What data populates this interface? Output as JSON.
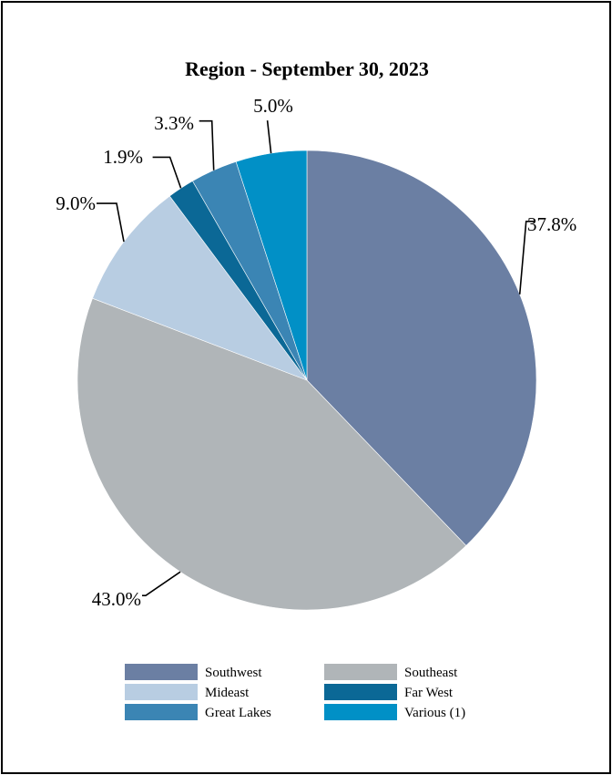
{
  "chart_data": {
    "type": "pie",
    "title": "Region - September 30, 2023",
    "slices": [
      {
        "name": "Southwest",
        "value": 37.8,
        "label": "37.8%",
        "color": "#6b7fa3"
      },
      {
        "name": "Southeast",
        "value": 43.0,
        "label": "43.0%",
        "color": "#b0b5b8"
      },
      {
        "name": "Mideast",
        "value": 9.0,
        "label": "9.0%",
        "color": "#b8cde2"
      },
      {
        "name": "Far West",
        "value": 1.9,
        "label": "1.9%",
        "color": "#0b6896"
      },
      {
        "name": "Great Lakes",
        "value": 3.3,
        "label": "3.3%",
        "color": "#3b85b4"
      },
      {
        "name": "Various (1)",
        "value": 5.0,
        "label": "5.0%",
        "color": "#0190c6"
      }
    ],
    "start_angle": "12 o'clock, clockwise",
    "legend_position": "bottom",
    "legend_order": [
      "Southwest",
      "Southeast",
      "Mideast",
      "Far West",
      "Great Lakes",
      "Various (1)"
    ]
  }
}
